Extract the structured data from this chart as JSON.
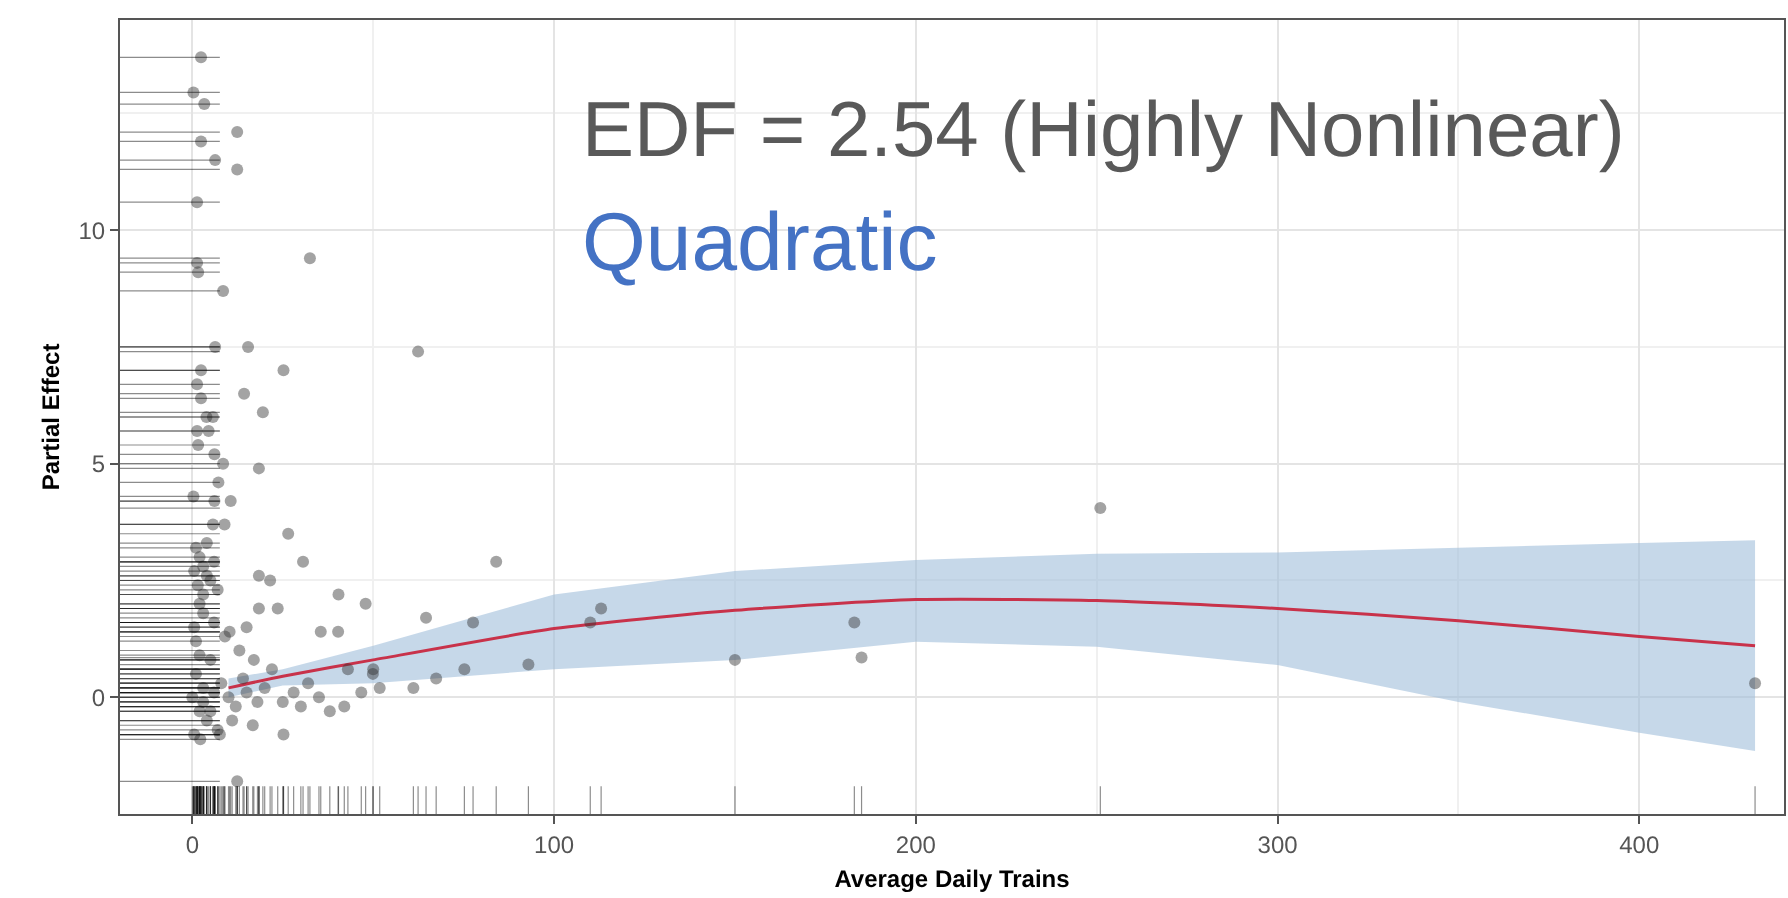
{
  "chart_data": {
    "type": "scatter",
    "xlabel": "Average Daily Trains",
    "ylabel": "Partial Effect",
    "annotations": [
      "EDF = 2.54 (Highly Nonlinear)",
      "Quadratic"
    ],
    "xlim": [
      -20,
      440
    ],
    "xticks": [
      0,
      100,
      200,
      300,
      400
    ],
    "ylim": [
      -2.5,
      14.5
    ],
    "yticks": [
      0,
      5,
      10
    ],
    "grid": true,
    "series": [
      {
        "marker": "circle",
        "color": "#333333",
        "x": [
          2.4,
          0.3,
          3.3,
          2.4,
          12.4,
          6.3,
          12.4,
          1.3,
          1.3,
          1.6,
          32.5,
          8.5,
          6.3,
          15.4,
          62.4,
          2.4,
          25.2,
          1.3,
          14.3,
          19.5,
          2.4,
          3.9,
          5.7,
          1.3,
          4.5,
          1.6,
          6.1,
          18.4,
          8.5,
          7.2,
          0.3,
          6.1,
          10.6,
          8.9,
          5.7,
          26.5,
          30.6,
          84,
          18.4,
          21.5,
          40.4,
          47.9,
          18.4,
          23.6,
          64.6,
          77.6,
          15,
          35.5,
          40.3,
          10.3,
          92.9,
          75.2,
          67.4,
          61.1,
          49.9,
          51.8,
          46.7,
          42,
          25.2,
          12.4,
          16.7,
          2.2,
          7.6,
          1,
          2,
          3,
          4,
          1.5,
          3,
          5,
          2,
          6,
          0.5,
          4,
          7,
          0,
          1,
          2,
          3,
          4,
          5,
          6,
          0.5,
          1,
          2,
          3,
          8,
          10,
          12,
          15,
          18,
          20,
          25,
          28,
          30,
          35,
          38,
          22,
          17,
          13,
          9,
          6,
          3,
          11,
          7,
          0.5,
          32,
          43,
          50,
          14,
          5,
          113,
          110,
          150,
          183,
          185,
          251,
          432
        ],
        "values": [
          13.7,
          12.95,
          12.7,
          11.9,
          12.1,
          11.5,
          11.3,
          10.6,
          9.3,
          9.1,
          9.4,
          8.7,
          7.5,
          7.5,
          7.4,
          7.0,
          7.0,
          6.7,
          6.5,
          6.1,
          6.4,
          6.0,
          6.0,
          5.7,
          5.7,
          5.4,
          5.2,
          4.9,
          5.0,
          4.6,
          4.3,
          4.2,
          4.2,
          3.7,
          3.7,
          3.5,
          2.9,
          2.9,
          2.6,
          2.5,
          2.2,
          2.0,
          1.9,
          1.9,
          1.7,
          1.6,
          1.5,
          1.4,
          1.4,
          1.4,
          0.7,
          0.6,
          0.4,
          0.2,
          0.5,
          0.2,
          0.1,
          -0.2,
          -0.8,
          -1.8,
          -0.6,
          -0.9,
          -0.8,
          3.2,
          3.0,
          2.8,
          2.6,
          2.4,
          2.2,
          2.5,
          2.0,
          2.9,
          2.7,
          3.3,
          2.3,
          0,
          0.5,
          -0.3,
          0.2,
          -0.5,
          0.8,
          0.1,
          -0.8,
          1.2,
          0.9,
          -0.1,
          0.3,
          0,
          -0.2,
          0.1,
          -0.1,
          0.2,
          -0.1,
          0.1,
          -0.2,
          0,
          -0.3,
          0.6,
          0.8,
          1.0,
          1.3,
          1.6,
          1.8,
          -0.5,
          -0.7,
          1.5,
          0.3,
          0.6,
          0.6,
          0.4,
          -0.3,
          1.9,
          1.6,
          0.8,
          1.6,
          0.85,
          4.05,
          0.3
        ]
      },
      {
        "type": "line",
        "marker": "none",
        "color": "#c8324a",
        "x": [
          10,
          25,
          50,
          100,
          150,
          200,
          250,
          300,
          350,
          400,
          432
        ],
        "values": [
          0.2,
          0.45,
          0.8,
          1.47,
          1.86,
          2.09,
          2.07,
          1.9,
          1.64,
          1.3,
          1.1
        ],
        "lower": [
          0.0,
          0.25,
          0.3,
          0.6,
          0.8,
          1.19,
          1.08,
          0.69,
          -0.1,
          -0.76,
          -1.15
        ],
        "upper": [
          0.4,
          0.6,
          1.1,
          2.2,
          2.7,
          2.94,
          3.07,
          3.1,
          3.2,
          3.3,
          3.36
        ]
      }
    ]
  }
}
